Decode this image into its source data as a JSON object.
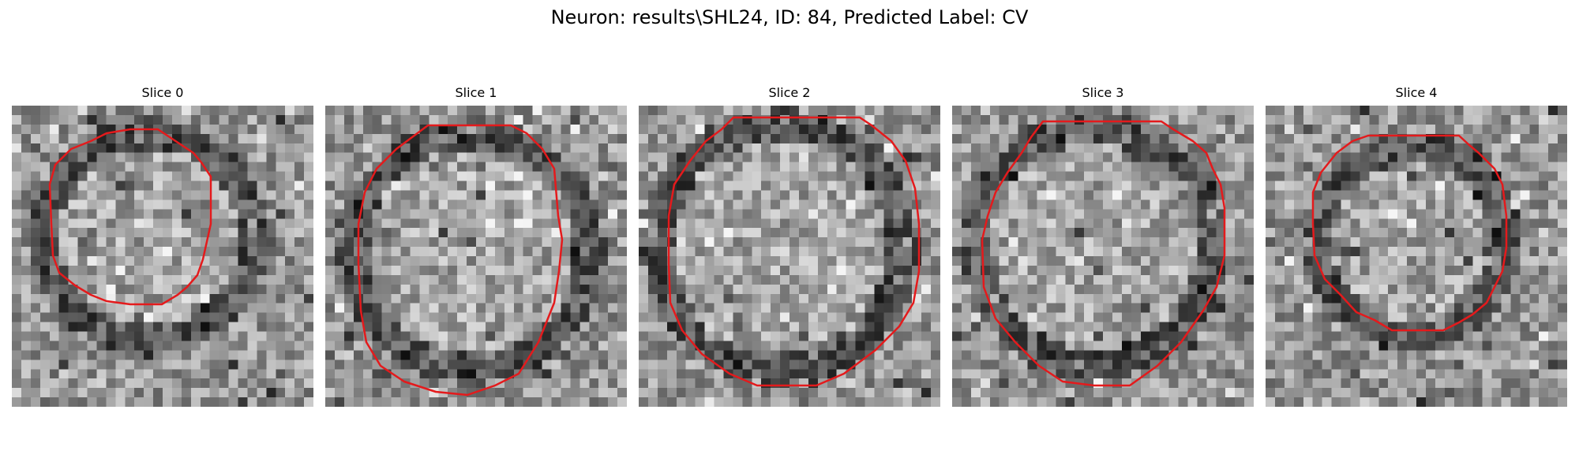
{
  "figure": {
    "title": "Neuron: results\\SHL24, ID: 84, Predicted Label: CV"
  },
  "panels": [
    {
      "title": "Slice 0",
      "seed": 11,
      "outline_color": "#e41a1c"
    },
    {
      "title": "Slice 1",
      "seed": 23,
      "outline_color": "#e41a1c"
    },
    {
      "title": "Slice 2",
      "seed": 37,
      "outline_color": "#e41a1c"
    },
    {
      "title": "Slice 3",
      "seed": 53,
      "outline_color": "#e41a1c"
    },
    {
      "title": "Slice 4",
      "seed": 71,
      "outline_color": "#e41a1c"
    }
  ]
}
